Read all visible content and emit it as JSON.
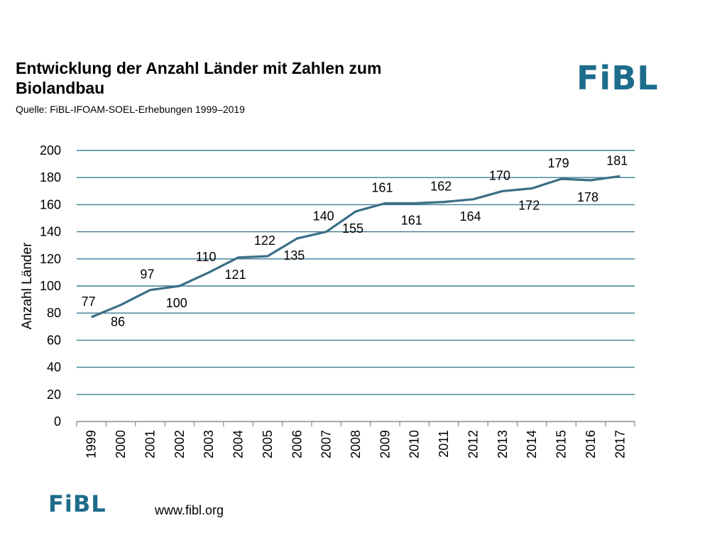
{
  "header": {
    "title": "Entwicklung der Anzahl Länder mit Zahlen zum Biolandbau",
    "subtitle": "Quelle: FiBL-IFOAM-SOEL-Erhebungen 1999–2019"
  },
  "logo_text": "FiBL",
  "footer": {
    "url": "www.fibl.org"
  },
  "colors": {
    "line": "#3a6f86",
    "grid": "#3d7a94",
    "brand": "#1d6c8c"
  },
  "chart_data": {
    "type": "line",
    "title": "Entwicklung der Anzahl Länder mit Zahlen zum Biolandbau",
    "xlabel": "",
    "ylabel": "Anzahl Länder",
    "ylim": [
      0,
      200
    ],
    "yticks": [
      0,
      20,
      40,
      60,
      80,
      100,
      120,
      140,
      160,
      180,
      200
    ],
    "grid": true,
    "categories": [
      "1999",
      "2000",
      "2001",
      "2002",
      "2003",
      "2004",
      "2005",
      "2006",
      "2007",
      "2008",
      "2009",
      "2010",
      "2011",
      "2012",
      "2013",
      "2014",
      "2015",
      "2016",
      "2017"
    ],
    "series": [
      {
        "name": "Anzahl Länder",
        "values": [
          77,
          86,
          97,
          100,
          110,
          121,
          122,
          135,
          140,
          155,
          161,
          161,
          162,
          164,
          170,
          172,
          179,
          178,
          181
        ],
        "label_position": [
          "above",
          "below",
          "above",
          "below",
          "above",
          "below",
          "above",
          "below",
          "above",
          "below",
          "above",
          "below",
          "above",
          "below",
          "above",
          "below",
          "above",
          "below",
          "above"
        ]
      }
    ]
  }
}
